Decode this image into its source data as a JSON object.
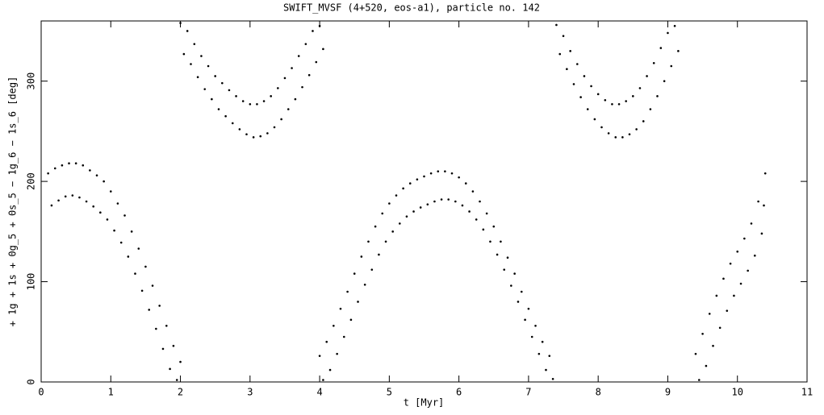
{
  "chart_data": {
    "type": "scatter",
    "title": "SWIFT_MVSF (4+520, eos-a1), particle no. 142",
    "x_label": "t [Myr]",
    "y_label": "+ 1g + 1s + 0g_5 + 0s_5 − 1g_6 − 1s_6 [deg]",
    "xlim": [
      0,
      11
    ],
    "ylim": [
      0,
      360
    ],
    "xticks": [
      0,
      1,
      2,
      3,
      4,
      5,
      6,
      7,
      8,
      9,
      10,
      11
    ],
    "yticks": [
      0,
      100,
      200,
      300
    ],
    "color": "#000000",
    "x": [
      0.1,
      0.15,
      0.2,
      0.25,
      0.3,
      0.35,
      0.4,
      0.45,
      0.5,
      0.55,
      0.6,
      0.65,
      0.7,
      0.75,
      0.8,
      0.85,
      0.9,
      0.95,
      1.0,
      1.05,
      1.1,
      1.15,
      1.2,
      1.25,
      1.3,
      1.35,
      1.4,
      1.45,
      1.5,
      1.55,
      1.6,
      1.65,
      1.7,
      1.75,
      1.8,
      1.85,
      1.9,
      1.95,
      2.0,
      2.0,
      2.05,
      2.1,
      2.15,
      2.2,
      2.25,
      2.3,
      2.35,
      2.4,
      2.45,
      2.5,
      2.55,
      2.6,
      2.65,
      2.7,
      2.75,
      2.8,
      2.85,
      2.9,
      2.95,
      3.0,
      3.05,
      3.1,
      3.15,
      3.2,
      3.25,
      3.3,
      3.35,
      3.4,
      3.45,
      3.5,
      3.55,
      3.6,
      3.65,
      3.7,
      3.75,
      3.8,
      3.85,
      3.9,
      3.95,
      4.0,
      4.05,
      4.0,
      4.05,
      4.1,
      4.15,
      4.2,
      4.25,
      4.3,
      4.35,
      4.4,
      4.45,
      4.5,
      4.55,
      4.6,
      4.65,
      4.7,
      4.75,
      4.8,
      4.85,
      4.9,
      4.95,
      5.0,
      5.05,
      5.1,
      5.15,
      5.2,
      5.25,
      5.3,
      5.35,
      5.4,
      5.45,
      5.5,
      5.55,
      5.6,
      5.65,
      5.7,
      5.75,
      5.8,
      5.85,
      5.9,
      5.95,
      6.0,
      6.05,
      6.1,
      6.15,
      6.2,
      6.25,
      6.3,
      6.35,
      6.4,
      6.45,
      6.5,
      6.55,
      6.6,
      6.65,
      6.7,
      6.75,
      6.8,
      6.85,
      6.9,
      6.95,
      7.0,
      7.05,
      7.1,
      7.15,
      7.2,
      7.25,
      7.3,
      7.35,
      7.4,
      7.45,
      7.5,
      7.55,
      7.6,
      7.65,
      7.7,
      7.75,
      7.8,
      7.85,
      7.9,
      7.95,
      8.0,
      8.05,
      8.1,
      8.15,
      8.2,
      8.25,
      8.3,
      8.35,
      8.4,
      8.45,
      8.5,
      8.55,
      8.6,
      8.65,
      8.7,
      8.75,
      8.8,
      8.85,
      8.9,
      8.95,
      9.0,
      9.05,
      9.1,
      9.15,
      9.4,
      9.45,
      9.5,
      9.55,
      9.6,
      9.65,
      9.7,
      9.75,
      9.8,
      9.85,
      9.9,
      9.95,
      10.0,
      10.05,
      10.1,
      10.15,
      10.2,
      10.25,
      10.3,
      10.35,
      10.4,
      10.38
    ],
    "values": [
      208,
      176,
      213,
      181,
      216,
      185,
      218,
      186,
      218,
      184,
      216,
      180,
      211,
      175,
      206,
      169,
      200,
      162,
      190,
      151,
      178,
      139,
      166,
      125,
      150,
      108,
      133,
      91,
      115,
      72,
      96,
      53,
      76,
      33,
      56,
      13,
      36,
      2,
      20,
      358,
      327,
      350,
      317,
      337,
      304,
      325,
      292,
      315,
      282,
      305,
      272,
      298,
      265,
      291,
      258,
      285,
      252,
      280,
      247,
      277,
      244,
      277,
      245,
      280,
      248,
      285,
      254,
      293,
      262,
      303,
      272,
      313,
      282,
      325,
      294,
      337,
      306,
      350,
      319,
      355,
      332,
      26,
      2,
      40,
      12,
      56,
      28,
      73,
      45,
      90,
      62,
      108,
      80,
      125,
      97,
      140,
      112,
      155,
      127,
      168,
      140,
      178,
      150,
      186,
      158,
      193,
      165,
      198,
      170,
      202,
      174,
      205,
      177,
      208,
      180,
      210,
      182,
      210,
      182,
      208,
      180,
      204,
      176,
      198,
      170,
      190,
      162,
      180,
      152,
      168,
      140,
      155,
      127,
      140,
      112,
      124,
      96,
      108,
      80,
      90,
      62,
      73,
      45,
      56,
      28,
      40,
      12,
      26,
      3,
      356,
      327,
      345,
      312,
      330,
      297,
      317,
      284,
      305,
      272,
      295,
      262,
      287,
      254,
      281,
      248,
      277,
      244,
      277,
      244,
      280,
      247,
      285,
      252,
      293,
      260,
      305,
      272,
      318,
      285,
      333,
      300,
      348,
      315,
      355,
      330,
      28,
      2,
      48,
      16,
      68,
      36,
      86,
      54,
      103,
      71,
      118,
      86,
      130,
      98,
      143,
      111,
      158,
      126,
      180,
      148,
      208,
      176
    ]
  }
}
